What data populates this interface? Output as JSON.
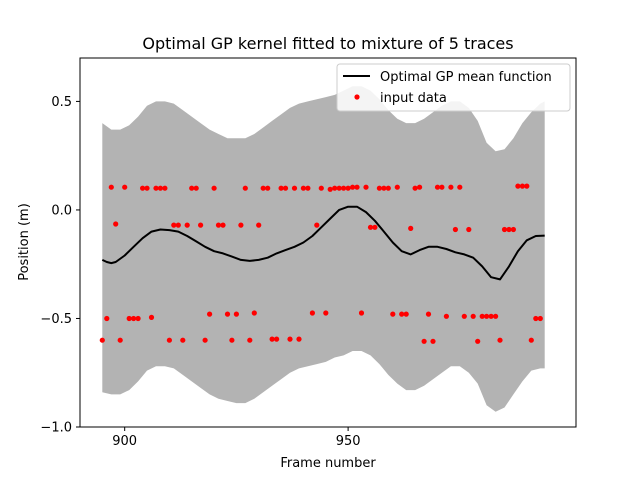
{
  "chart_data": {
    "type": "line",
    "title": "Optimal GP kernel fitted to mixture of 5 traces",
    "xlabel": "Frame number",
    "ylabel": "Position (m)",
    "xlim": [
      890,
      1001
    ],
    "ylim": [
      -1.0,
      0.7
    ],
    "xticks": [
      900,
      950
    ],
    "yticks": [
      -1.0,
      -0.5,
      0.0,
      0.5
    ],
    "xtick_labels": [
      "900",
      "950"
    ],
    "ytick_labels": [
      "−1.0",
      "−0.5",
      "0.0",
      "0.5"
    ],
    "legend_position": "top-right",
    "grid": false,
    "series": [
      {
        "name": "Optimal GP mean function",
        "type": "line",
        "color": "#000000",
        "x": [
          895,
          896,
          897,
          898,
          900,
          902,
          904,
          906,
          908,
          910,
          912,
          914,
          916,
          918,
          920,
          922,
          924,
          926,
          928,
          930,
          932,
          934,
          936,
          938,
          940,
          942,
          944,
          946,
          948,
          950,
          952,
          954,
          956,
          958,
          960,
          962,
          964,
          966,
          968,
          970,
          972,
          974,
          976,
          978,
          980,
          982,
          984,
          986,
          988,
          990,
          992,
          994
        ],
        "y": [
          -0.23,
          -0.24,
          -0.245,
          -0.24,
          -0.21,
          -0.17,
          -0.13,
          -0.1,
          -0.09,
          -0.093,
          -0.1,
          -0.12,
          -0.145,
          -0.17,
          -0.19,
          -0.2,
          -0.215,
          -0.23,
          -0.235,
          -0.23,
          -0.22,
          -0.2,
          -0.185,
          -0.17,
          -0.15,
          -0.12,
          -0.08,
          -0.04,
          0.0,
          0.015,
          0.015,
          -0.01,
          -0.05,
          -0.1,
          -0.15,
          -0.19,
          -0.205,
          -0.185,
          -0.17,
          -0.17,
          -0.18,
          -0.195,
          -0.205,
          -0.22,
          -0.26,
          -0.31,
          -0.32,
          -0.26,
          -0.19,
          -0.14,
          -0.12,
          -0.118
        ]
      },
      {
        "name": "input data",
        "type": "scatter",
        "color": "#ff0000",
        "x": [
          895,
          896,
          897,
          898,
          899,
          900,
          901,
          902,
          903,
          904,
          905,
          906,
          907,
          908,
          909,
          910,
          911,
          912,
          913,
          914,
          915,
          916,
          917,
          918,
          919,
          920,
          921,
          922,
          923,
          924,
          925,
          926,
          927,
          928,
          929,
          930,
          931,
          932,
          933,
          934,
          935,
          936,
          937,
          938,
          939,
          940,
          941,
          942,
          943,
          944,
          945,
          946,
          947,
          948,
          949,
          950,
          951,
          952,
          953,
          954,
          955,
          956,
          957,
          958,
          959,
          960,
          961,
          962,
          963,
          964,
          965,
          966,
          967,
          968,
          969,
          970,
          971,
          972,
          973,
          974,
          975,
          976,
          977,
          978,
          979,
          980,
          981,
          982,
          983,
          984,
          985,
          986,
          987,
          988,
          989,
          990,
          991,
          992,
          993
        ],
        "y": [
          -0.6,
          -0.5,
          0.105,
          -0.065,
          -0.6,
          0.105,
          -0.5,
          -0.5,
          -0.5,
          0.1,
          0.1,
          -0.495,
          0.1,
          0.1,
          0.1,
          -0.6,
          -0.07,
          -0.07,
          -0.6,
          -0.07,
          0.1,
          0.1,
          -0.07,
          -0.6,
          -0.48,
          0.1,
          -0.07,
          -0.07,
          -0.48,
          -0.6,
          -0.48,
          -0.07,
          0.1,
          -0.6,
          -0.475,
          -0.07,
          0.1,
          0.1,
          -0.595,
          -0.595,
          0.1,
          0.1,
          -0.595,
          0.1,
          -0.595,
          0.1,
          0.1,
          -0.475,
          -0.07,
          0.1,
          -0.475,
          0.095,
          0.1,
          0.1,
          0.1,
          0.1,
          0.105,
          0.105,
          -0.475,
          0.105,
          -0.08,
          -0.08,
          0.1,
          0.1,
          0.1,
          -0.48,
          0.105,
          -0.48,
          -0.48,
          -0.085,
          0.1,
          0.105,
          -0.605,
          -0.48,
          -0.605,
          0.105,
          0.105,
          -0.49,
          0.105,
          -0.09,
          0.105,
          -0.49,
          -0.09,
          -0.49,
          -0.605,
          -0.49,
          -0.49,
          -0.49,
          -0.49,
          -0.6,
          -0.09,
          -0.09,
          -0.09,
          0.11,
          0.11,
          0.11,
          -0.6,
          -0.5,
          -0.5
        ]
      }
    ],
    "confidence_band": {
      "color": "#b3b3b3",
      "x": [
        895,
        897,
        899,
        901,
        903,
        905,
        907,
        909,
        911,
        913,
        915,
        917,
        919,
        921,
        923,
        925,
        927,
        929,
        931,
        933,
        935,
        937,
        939,
        941,
        943,
        945,
        947,
        949,
        951,
        953,
        955,
        957,
        959,
        961,
        963,
        965,
        967,
        969,
        971,
        973,
        975,
        977,
        979,
        981,
        983,
        985,
        987,
        989,
        991,
        993,
        994
      ],
      "upper": [
        0.4,
        0.37,
        0.37,
        0.39,
        0.43,
        0.48,
        0.5,
        0.5,
        0.49,
        0.46,
        0.43,
        0.4,
        0.37,
        0.35,
        0.33,
        0.33,
        0.33,
        0.35,
        0.38,
        0.41,
        0.44,
        0.47,
        0.49,
        0.5,
        0.51,
        0.52,
        0.53,
        0.55,
        0.57,
        0.57,
        0.55,
        0.51,
        0.46,
        0.42,
        0.4,
        0.4,
        0.42,
        0.45,
        0.48,
        0.5,
        0.5,
        0.47,
        0.41,
        0.31,
        0.27,
        0.28,
        0.33,
        0.4,
        0.45,
        0.49,
        0.5
      ],
      "lower": [
        -0.84,
        -0.85,
        -0.85,
        -0.83,
        -0.79,
        -0.74,
        -0.72,
        -0.72,
        -0.73,
        -0.76,
        -0.79,
        -0.82,
        -0.85,
        -0.87,
        -0.88,
        -0.89,
        -0.89,
        -0.87,
        -0.84,
        -0.81,
        -0.78,
        -0.75,
        -0.73,
        -0.72,
        -0.71,
        -0.7,
        -0.68,
        -0.67,
        -0.65,
        -0.65,
        -0.67,
        -0.71,
        -0.76,
        -0.8,
        -0.83,
        -0.83,
        -0.81,
        -0.78,
        -0.75,
        -0.72,
        -0.72,
        -0.75,
        -0.8,
        -0.9,
        -0.93,
        -0.91,
        -0.85,
        -0.79,
        -0.74,
        -0.73,
        -0.73
      ]
    }
  }
}
